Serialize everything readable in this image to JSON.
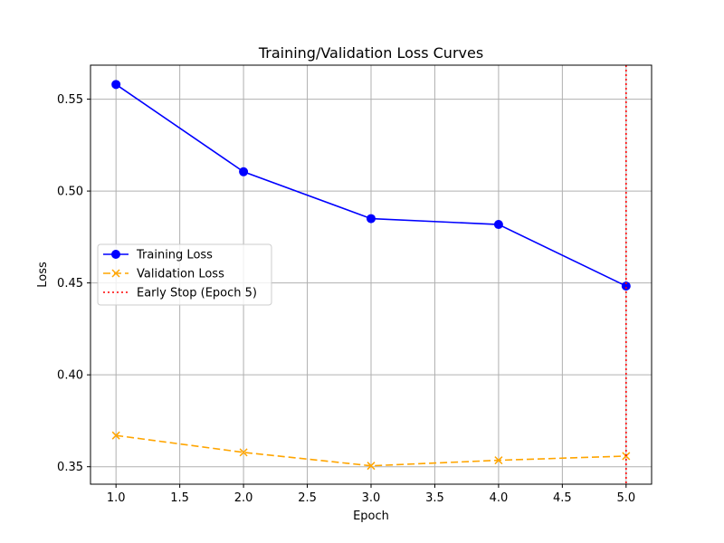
{
  "chart_data": {
    "type": "line",
    "title": "Training/Validation Loss Curves",
    "xlabel": "Epoch",
    "ylabel": "Loss",
    "xlim": [
      0.8,
      5.2
    ],
    "ylim": [
      0.3405,
      0.5685
    ],
    "grid": true,
    "legend_position": "center-left",
    "x": [
      1,
      2,
      3,
      4,
      5
    ],
    "x_ticks": [
      1.0,
      1.5,
      2.0,
      2.5,
      3.0,
      3.5,
      4.0,
      4.5,
      5.0
    ],
    "x_tick_labels": [
      "1.0",
      "1.5",
      "2.0",
      "2.5",
      "3.0",
      "3.5",
      "4.0",
      "4.5",
      "5.0"
    ],
    "y_ticks": [
      0.35,
      0.4,
      0.45,
      0.5,
      0.55
    ],
    "y_tick_labels": [
      "0.35",
      "0.40",
      "0.45",
      "0.50",
      "0.55"
    ],
    "series": [
      {
        "name": "Training Loss",
        "values": [
          0.558,
          0.5105,
          0.485,
          0.4818,
          0.4483
        ],
        "color": "#0000ff",
        "marker": "circle",
        "line_style": "solid"
      },
      {
        "name": "Validation Loss",
        "values": [
          0.367,
          0.3578,
          0.3505,
          0.3535,
          0.3558
        ],
        "color": "#ffa500",
        "marker": "x",
        "line_style": "dashed"
      }
    ],
    "vlines": [
      {
        "name": "Early Stop (Epoch 5)",
        "x": 5,
        "color": "#ff0000",
        "line_style": "dotted"
      }
    ]
  }
}
